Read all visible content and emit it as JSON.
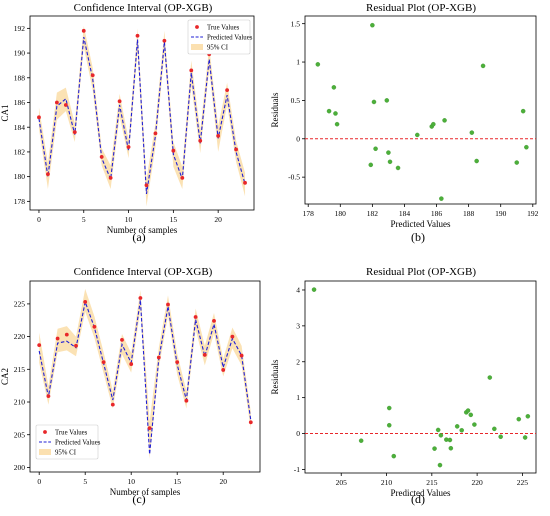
{
  "colors": {
    "true_marker": "#e8272a",
    "predicted_line": "#1f1fd6",
    "ci_band": "#fbe0b0",
    "residual_marker": "#4caf3a",
    "zero_line": "#e8272a"
  },
  "chart_data": [
    {
      "type": "line",
      "panel_label": "(a)",
      "title": "Confidence Interval (OP-XGB)",
      "xlabel": "Number of samples",
      "ylabel": "CA1",
      "xlim": [
        -1,
        24
      ],
      "ylim": [
        177.3,
        193.0
      ],
      "xticks": [
        0,
        5,
        10,
        15,
        20
      ],
      "yticks": [
        178,
        180,
        182,
        184,
        186,
        188,
        190,
        192
      ],
      "legend_position": "top-right",
      "x": [
        0,
        1,
        2,
        3,
        4,
        5,
        6,
        7,
        8,
        9,
        10,
        11,
        12,
        13,
        14,
        15,
        16,
        17,
        18,
        19,
        20,
        21,
        22,
        23
      ],
      "series": [
        {
          "name": "True Values",
          "style": "marker",
          "values": [
            184.8,
            180.2,
            186.0,
            185.8,
            183.6,
            191.8,
            188.2,
            181.6,
            179.9,
            186.1,
            182.4,
            191.4,
            179.3,
            183.5,
            191.0,
            182.1,
            179.9,
            188.6,
            182.9,
            189.9,
            183.3,
            187.0,
            182.2,
            179.5
          ]
        },
        {
          "name": "Predicted Values",
          "style": "dashed",
          "values": [
            184.7,
            180.0,
            185.7,
            186.3,
            183.4,
            191.3,
            187.9,
            181.5,
            179.8,
            185.8,
            182.1,
            191.1,
            178.6,
            183.3,
            190.9,
            181.8,
            179.8,
            188.4,
            182.7,
            189.5,
            183.1,
            186.6,
            182.0,
            179.4
          ]
        },
        {
          "name": "95% CI",
          "style": "band",
          "lower": [
            183.9,
            179.0,
            184.6,
            185.3,
            182.8,
            190.5,
            187.0,
            180.9,
            179.0,
            184.9,
            181.5,
            190.1,
            177.6,
            182.4,
            190.0,
            180.8,
            179.0,
            187.4,
            181.9,
            188.7,
            182.0,
            185.8,
            181.2,
            178.4
          ],
          "upper": [
            185.6,
            181.1,
            186.8,
            187.2,
            184.3,
            192.2,
            188.8,
            182.3,
            180.9,
            186.7,
            183.0,
            192.0,
            179.8,
            184.3,
            191.8,
            182.8,
            180.8,
            189.4,
            183.7,
            190.5,
            184.1,
            187.6,
            182.9,
            180.3
          ]
        }
      ]
    },
    {
      "type": "scatter",
      "panel_label": "(b)",
      "title": "Residual Plot (OP-XGB)",
      "xlabel": "Predicted Values",
      "ylabel": "Residuals",
      "xlim": [
        177.8,
        192.2
      ],
      "ylim": [
        -0.85,
        1.6
      ],
      "xticks": [
        178,
        180,
        182,
        184,
        186,
        188,
        190,
        192
      ],
      "yticks": [
        -0.5,
        0.0,
        0.5,
        1.0,
        1.5
      ],
      "zero_line": 0,
      "x": [
        178.6,
        179.3,
        179.6,
        179.7,
        179.8,
        181.9,
        182.0,
        182.1,
        182.2,
        182.9,
        183.0,
        183.1,
        183.6,
        184.8,
        185.7,
        185.8,
        186.3,
        186.5,
        188.2,
        188.5,
        188.9,
        191.0,
        191.4,
        191.6
      ],
      "y": [
        0.97,
        0.36,
        0.67,
        0.33,
        0.19,
        -0.34,
        1.48,
        0.48,
        -0.13,
        0.5,
        -0.18,
        -0.3,
        -0.38,
        0.05,
        0.16,
        0.19,
        -0.78,
        0.24,
        0.08,
        -0.29,
        0.95,
        -0.31,
        0.36,
        -0.11
      ]
    },
    {
      "type": "line",
      "panel_label": "(c)",
      "title": "Confidence Interval (OP-XGB)",
      "xlabel": "Number of samples",
      "ylabel": "CA2",
      "xlim": [
        -1,
        24
      ],
      "ylim": [
        199.3,
        228.5
      ],
      "xticks": [
        0,
        5,
        10,
        15,
        20
      ],
      "yticks": [
        200,
        205,
        210,
        215,
        220,
        225
      ],
      "legend_position": "bottom-left",
      "x": [
        0,
        1,
        2,
        3,
        4,
        5,
        6,
        7,
        8,
        9,
        10,
        11,
        12,
        13,
        14,
        15,
        16,
        17,
        18,
        19,
        20,
        21,
        22,
        23
      ],
      "series": [
        {
          "name": "True Values",
          "style": "marker",
          "values": [
            218.7,
            210.9,
            219.7,
            220.3,
            218.6,
            225.3,
            221.5,
            216.1,
            209.6,
            219.5,
            215.8,
            225.9,
            206.0,
            216.8,
            224.9,
            216.1,
            210.2,
            223.0,
            217.2,
            222.4,
            214.9,
            220.0,
            217.1,
            206.9
          ]
        },
        {
          "name": "Predicted Values",
          "style": "dashed",
          "values": [
            217.8,
            210.8,
            219.0,
            219.3,
            218.3,
            225.3,
            221.4,
            215.9,
            210.3,
            218.8,
            216.0,
            225.6,
            202.0,
            216.6,
            224.6,
            215.7,
            210.3,
            222.6,
            217.0,
            221.9,
            215.3,
            219.7,
            217.1,
            207.2
          ]
        },
        {
          "name": "95% CI",
          "style": "band",
          "lower": [
            216.0,
            209.6,
            217.6,
            217.9,
            217.0,
            223.8,
            219.8,
            214.4,
            209.0,
            217.3,
            214.5,
            224.2,
            201.3,
            215.2,
            223.2,
            214.2,
            209.0,
            221.1,
            215.6,
            220.5,
            213.9,
            218.2,
            215.6,
            205.8
          ],
          "upper": [
            220.6,
            212.4,
            221.2,
            221.6,
            220.0,
            227.3,
            223.1,
            217.6,
            211.7,
            220.4,
            217.5,
            227.1,
            207.0,
            218.3,
            226.3,
            217.4,
            211.7,
            224.3,
            218.6,
            223.6,
            216.6,
            221.4,
            218.6,
            208.5
          ]
        }
      ]
    },
    {
      "type": "scatter",
      "panel_label": "(d)",
      "title": "Residual Plot (OP-XGB)",
      "xlabel": "Predicted Values",
      "ylabel": "Residuals",
      "xlim": [
        201.0,
        226.5
      ],
      "ylim": [
        -1.1,
        4.25
      ],
      "xticks": [
        205,
        210,
        215,
        220,
        225
      ],
      "yticks": [
        -1,
        0,
        1,
        2,
        3,
        4
      ],
      "zero_line": 0,
      "x": [
        202.0,
        207.2,
        210.3,
        210.3,
        210.8,
        215.3,
        215.7,
        215.9,
        216.0,
        216.6,
        217.0,
        217.1,
        217.8,
        218.3,
        218.8,
        219.0,
        219.3,
        219.7,
        221.4,
        221.9,
        222.6,
        224.6,
        225.3,
        225.6
      ],
      "y": [
        4.01,
        -0.2,
        0.23,
        0.71,
        -0.63,
        -0.42,
        0.1,
        -0.88,
        -0.05,
        -0.17,
        -0.18,
        -0.41,
        0.2,
        0.09,
        0.59,
        0.64,
        0.52,
        0.25,
        1.56,
        0.13,
        -0.09,
        0.4,
        -0.11,
        0.48
      ]
    }
  ]
}
